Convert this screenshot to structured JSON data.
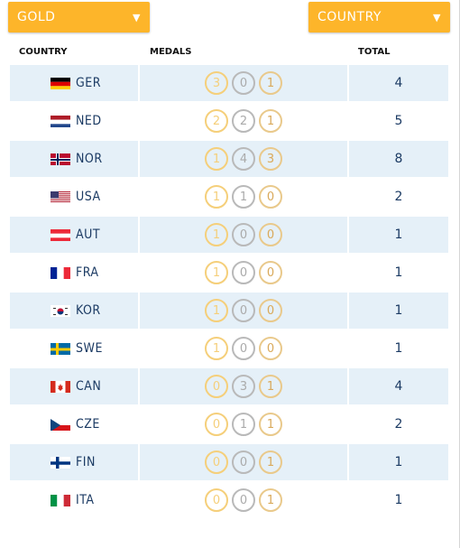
{
  "filters": {
    "medal_sort": "GOLD",
    "group_by": "COUNTRY"
  },
  "columns": {
    "country": "COUNTRY",
    "medals": "MEDALS",
    "total": "TOTAL"
  },
  "colors": {
    "dropdown": "#fdb52a",
    "row_shade": "#e5f0f8",
    "text": "#1b3a63"
  },
  "rows": [
    {
      "code": "GER",
      "flag": "ger",
      "gold": "3",
      "silver": "0",
      "bronze": "1",
      "total": "4"
    },
    {
      "code": "NED",
      "flag": "ned",
      "gold": "2",
      "silver": "2",
      "bronze": "1",
      "total": "5"
    },
    {
      "code": "NOR",
      "flag": "nor",
      "gold": "1",
      "silver": "4",
      "bronze": "3",
      "total": "8"
    },
    {
      "code": "USA",
      "flag": "usa",
      "gold": "1",
      "silver": "1",
      "bronze": "0",
      "total": "2"
    },
    {
      "code": "AUT",
      "flag": "aut",
      "gold": "1",
      "silver": "0",
      "bronze": "0",
      "total": "1"
    },
    {
      "code": "FRA",
      "flag": "fra",
      "gold": "1",
      "silver": "0",
      "bronze": "0",
      "total": "1"
    },
    {
      "code": "KOR",
      "flag": "kor",
      "gold": "1",
      "silver": "0",
      "bronze": "0",
      "total": "1"
    },
    {
      "code": "SWE",
      "flag": "swe",
      "gold": "1",
      "silver": "0",
      "bronze": "0",
      "total": "1"
    },
    {
      "code": "CAN",
      "flag": "can",
      "gold": "0",
      "silver": "3",
      "bronze": "1",
      "total": "4"
    },
    {
      "code": "CZE",
      "flag": "cze",
      "gold": "0",
      "silver": "1",
      "bronze": "1",
      "total": "2"
    },
    {
      "code": "FIN",
      "flag": "fin",
      "gold": "0",
      "silver": "0",
      "bronze": "1",
      "total": "1"
    },
    {
      "code": "ITA",
      "flag": "ita",
      "gold": "0",
      "silver": "0",
      "bronze": "1",
      "total": "1"
    }
  ]
}
